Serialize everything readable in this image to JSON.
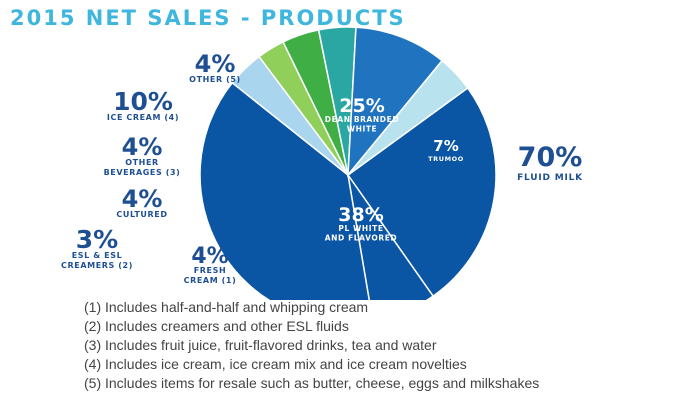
{
  "chart_data": {
    "type": "pie",
    "title": "2015 NET SALES - PRODUCTS",
    "slices": [
      {
        "pct_label": "25%",
        "name_lines": [
          "DEAN BRANDED",
          "WHITE"
        ],
        "value": 25,
        "color": "#0b56a4"
      },
      {
        "pct_label": "7%",
        "name_lines": [
          "TRUMOO"
        ],
        "value": 7,
        "color": "#0b56a4"
      },
      {
        "pct_label": "38%",
        "name_lines": [
          "PL WHITE",
          "AND FLAVORED"
        ],
        "value": 38,
        "color": "#0b56a4"
      },
      {
        "pct_label": "4%",
        "name_lines": [
          "FRESH",
          "CREAM (1)"
        ],
        "value": 4,
        "color": "#a9d5ef"
      },
      {
        "pct_label": "3%",
        "name_lines": [
          "ESL & ESL",
          "CREAMERS (2)"
        ],
        "value": 3,
        "color": "#8fcf5a"
      },
      {
        "pct_label": "4%",
        "name_lines": [
          "CULTURED"
        ],
        "value": 4,
        "color": "#3fae45"
      },
      {
        "pct_label": "4%",
        "name_lines": [
          "OTHER",
          "BEVERAGES (3)"
        ],
        "value": 4,
        "color": "#2aa7a2"
      },
      {
        "pct_label": "10%",
        "name_lines": [
          "ICE CREAM (4)"
        ],
        "value": 10,
        "color": "#1f73bf"
      },
      {
        "pct_label": "4%",
        "name_lines": [
          "OTHER (5)"
        ],
        "value": 4,
        "color": "#b9e2ef"
      }
    ],
    "group": {
      "pct_label": "70%",
      "name": "FLUID MILK",
      "value": 70
    }
  },
  "footnotes": [
    "(1) Includes half-and-half and whipping cream",
    "(2) Includes creamers and other ESL fluids",
    "(3) Includes fruit juice, fruit-flavored drinks, tea and water",
    "(4) Includes ice cream, ice cream mix and ice cream novelties",
    "(5) Includes items for resale such as butter, cheese, eggs and milkshakes"
  ]
}
